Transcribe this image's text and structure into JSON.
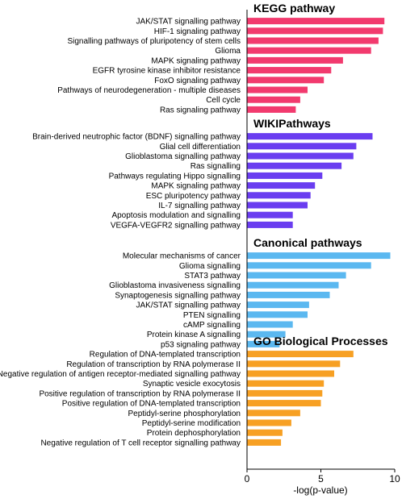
{
  "chart_data": {
    "type": "bar",
    "orientation": "horizontal",
    "xlabel": "-log(p-value)",
    "xlim": [
      0,
      10
    ],
    "xticks": [
      0,
      5,
      10
    ],
    "grid": false,
    "panels": [
      {
        "title": "KEGG pathway",
        "color": "#F23A6E",
        "categories": [
          "JAK/STAT signalling pathway",
          "HIF-1 signaling pathway",
          "Signalling pathways of pluripotency of stem cells",
          "Glioma",
          "MAPK signaling pathway",
          "EGFR tyrosine kinase inhibitor resistance",
          "FoxO signaling pathway",
          "Pathways of neurodegeneration - multiple diseases",
          "Cell cycle",
          "Ras signaling pathway"
        ],
        "values": [
          9.3,
          9.2,
          8.9,
          8.4,
          6.5,
          5.7,
          5.2,
          4.1,
          3.6,
          3.3
        ]
      },
      {
        "title": "WIKIPathways",
        "color": "#6A3DF0",
        "categories": [
          "Brain-derived neutrophic factor (BDNF) signalling pathway",
          "Glial cell differentiation",
          "Glioblastoma signalling pathway",
          "Ras signalling",
          "Pathways regulating Hippo signalling",
          "MAPK signaling pathway",
          "ESC pluripotency pathway",
          "IL-7 signalling pathway",
          "Apoptosis modulation and signalling",
          "VEGFA-VEGFR2 signalling pathway"
        ],
        "values": [
          8.5,
          7.4,
          7.2,
          6.4,
          5.1,
          4.6,
          4.3,
          4.1,
          3.1,
          3.1
        ]
      },
      {
        "title": "Canonical pathways",
        "color": "#5BB8F0",
        "categories": [
          "Molecular mechanisms of cancer",
          "Glioma signalling",
          "STAT3 pathway",
          "Glioblastoma invasiveness signalling",
          "Synaptogenesis signalling pathway",
          "JAK/STAT signalling pathway",
          "PTEN signalling",
          "cAMP signalling",
          "Protein kinase A signalling",
          "p53 signaling pathway"
        ],
        "values": [
          9.7,
          8.4,
          6.7,
          6.2,
          5.6,
          4.2,
          4.1,
          3.1,
          2.6,
          2.2
        ]
      },
      {
        "title": "GO Biological Processes",
        "color": "#F7A023",
        "categories": [
          "Regulation of DNA-templated transcription",
          "Regulation of transcription by RNA polymerase II",
          "Negative regulation of antigen receptor-mediated signalling pathway",
          "Synaptic vesicle exocytosis",
          "Positive regulation of transcription by RNA polymerase II",
          "Positive regulation of DNA-templated transcription",
          "Peptidyl-serine phosphorylation",
          "Peptidyl-serine modification",
          "Protein dephosphorylation",
          "Negative regulation of T cell receptor signalling pathway"
        ],
        "values": [
          7.2,
          6.3,
          5.9,
          5.2,
          5.1,
          5.0,
          3.6,
          3.0,
          2.4,
          2.3
        ]
      }
    ]
  }
}
